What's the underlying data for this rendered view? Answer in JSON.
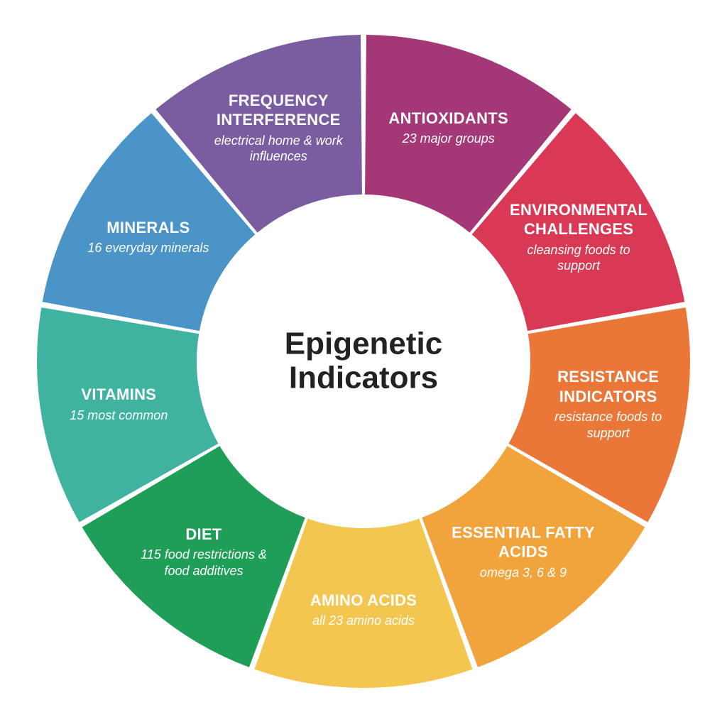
{
  "chart": {
    "type": "donut",
    "center_title_line1": "Epigenetic",
    "center_title_line2": "Indicators",
    "center_title_fontsize": 44,
    "center_title_color": "#222222",
    "background_color": "#ffffff",
    "outer_radius": 460,
    "inner_radius": 235,
    "gap_deg": 1.0,
    "start_angle_deg": -90,
    "label_radius": 350,
    "label_title_fontsize": 22,
    "label_sub_fontsize": 18,
    "label_max_width": 210,
    "segments": [
      {
        "title": "ANTIOXIDANTS",
        "subtitle": "23 major groups",
        "color": "#a43776"
      },
      {
        "title": "ENVIRONMENTAL CHALLENGES",
        "subtitle": "cleansing foods to support",
        "color": "#d93955"
      },
      {
        "title": "RESISTANCE INDICATORS",
        "subtitle": "resistance foods to support",
        "color": "#ea7638"
      },
      {
        "title": "ESSENTIAL FATTY ACIDS",
        "subtitle": "omega 3, 6 & 9",
        "color": "#f1a33c"
      },
      {
        "title": "AMINO ACIDS",
        "subtitle": "all 23 amino acids",
        "color": "#f3c650"
      },
      {
        "title": "DIET",
        "subtitle": "115 food restrictions & food additives",
        "color": "#1f9e58"
      },
      {
        "title": "VITAMINS",
        "subtitle": "15 most common",
        "color": "#3fb3a0"
      },
      {
        "title": "MINERALS",
        "subtitle": "16 everyday minerals",
        "color": "#4a94c8"
      },
      {
        "title": "FREQUENCY INTERFERENCE",
        "subtitle": "electrical home & work influences",
        "color": "#7a5ca0"
      }
    ]
  }
}
